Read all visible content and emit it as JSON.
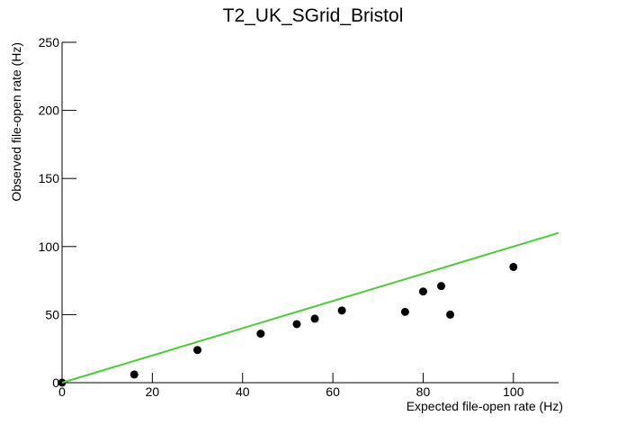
{
  "chart_data": {
    "type": "scatter",
    "title": "T2_UK_SGrid_Bristol",
    "x_label": "Expected file-open rate (Hz)",
    "y_label": "Observed file-open rate (Hz)",
    "xlim": [
      0,
      110
    ],
    "ylim": [
      0,
      250
    ],
    "xticks": [
      0,
      20,
      40,
      60,
      80,
      100
    ],
    "yticks": [
      0,
      50,
      100,
      150,
      200,
      250
    ],
    "series": [
      {
        "mode": "markers",
        "color": "#000000",
        "x": [
          0,
          16,
          30,
          44,
          52,
          56,
          62,
          76,
          80,
          84,
          86,
          100
        ],
        "values": [
          0,
          6,
          24,
          36,
          43,
          47,
          53,
          52,
          67,
          71,
          50,
          85
        ]
      },
      {
        "mode": "line",
        "color": "#4fc93b",
        "x": [
          0,
          110
        ],
        "values": [
          0,
          110
        ]
      }
    ]
  }
}
